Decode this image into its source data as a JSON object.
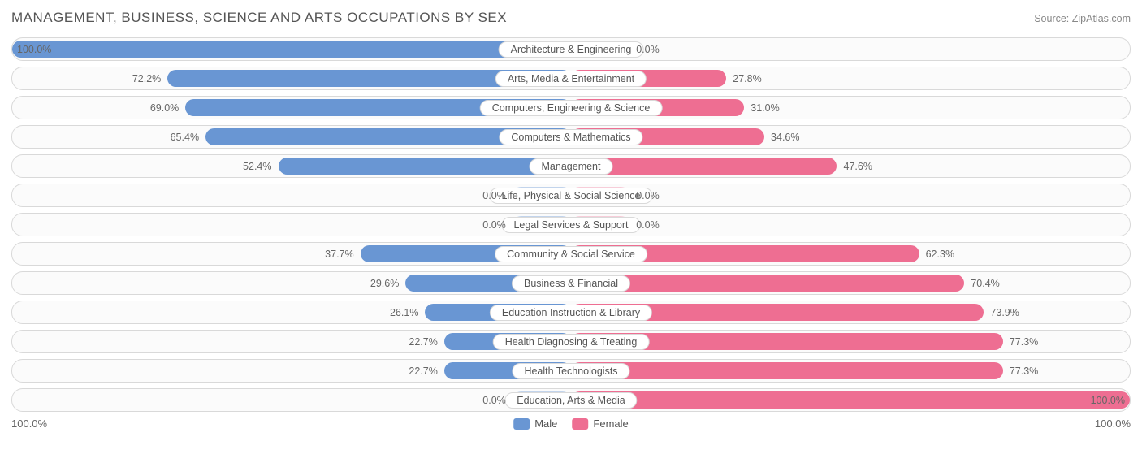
{
  "header": {
    "title": "MANAGEMENT, BUSINESS, SCIENCE AND ARTS OCCUPATIONS BY SEX",
    "source": "Source: ZipAtlas.com"
  },
  "chart": {
    "type": "diverging-bar",
    "male_color": "#6996d3",
    "female_color": "#ee6e92",
    "male_bg": "#c2d4ec",
    "female_bg": "#f7cdd9",
    "row_border": "#d9d9d9",
    "row_bg": "#fbfbfb",
    "text_color": "#555555",
    "label_text_color": "#666666",
    "min_visual_pct": 10.5,
    "categories": [
      {
        "name": "Architecture & Engineering",
        "male": 100.0,
        "female": 0.0
      },
      {
        "name": "Arts, Media & Entertainment",
        "male": 72.2,
        "female": 27.8
      },
      {
        "name": "Computers, Engineering & Science",
        "male": 69.0,
        "female": 31.0
      },
      {
        "name": "Computers & Mathematics",
        "male": 65.4,
        "female": 34.6
      },
      {
        "name": "Management",
        "male": 52.4,
        "female": 47.6
      },
      {
        "name": "Life, Physical & Social Science",
        "male": 0.0,
        "female": 0.0
      },
      {
        "name": "Legal Services & Support",
        "male": 0.0,
        "female": 0.0
      },
      {
        "name": "Community & Social Service",
        "male": 37.7,
        "female": 62.3
      },
      {
        "name": "Business & Financial",
        "male": 29.6,
        "female": 70.4
      },
      {
        "name": "Education Instruction & Library",
        "male": 26.1,
        "female": 73.9
      },
      {
        "name": "Health Diagnosing & Treating",
        "male": 22.7,
        "female": 77.3
      },
      {
        "name": "Health Technologists",
        "male": 22.7,
        "female": 77.3
      },
      {
        "name": "Education, Arts & Media",
        "male": 0.0,
        "female": 100.0
      }
    ],
    "axis": {
      "left": "100.0%",
      "right": "100.0%"
    },
    "legend": {
      "male": "Male",
      "female": "Female"
    },
    "label_fontsize": 12.5,
    "title_fontsize": 17
  }
}
